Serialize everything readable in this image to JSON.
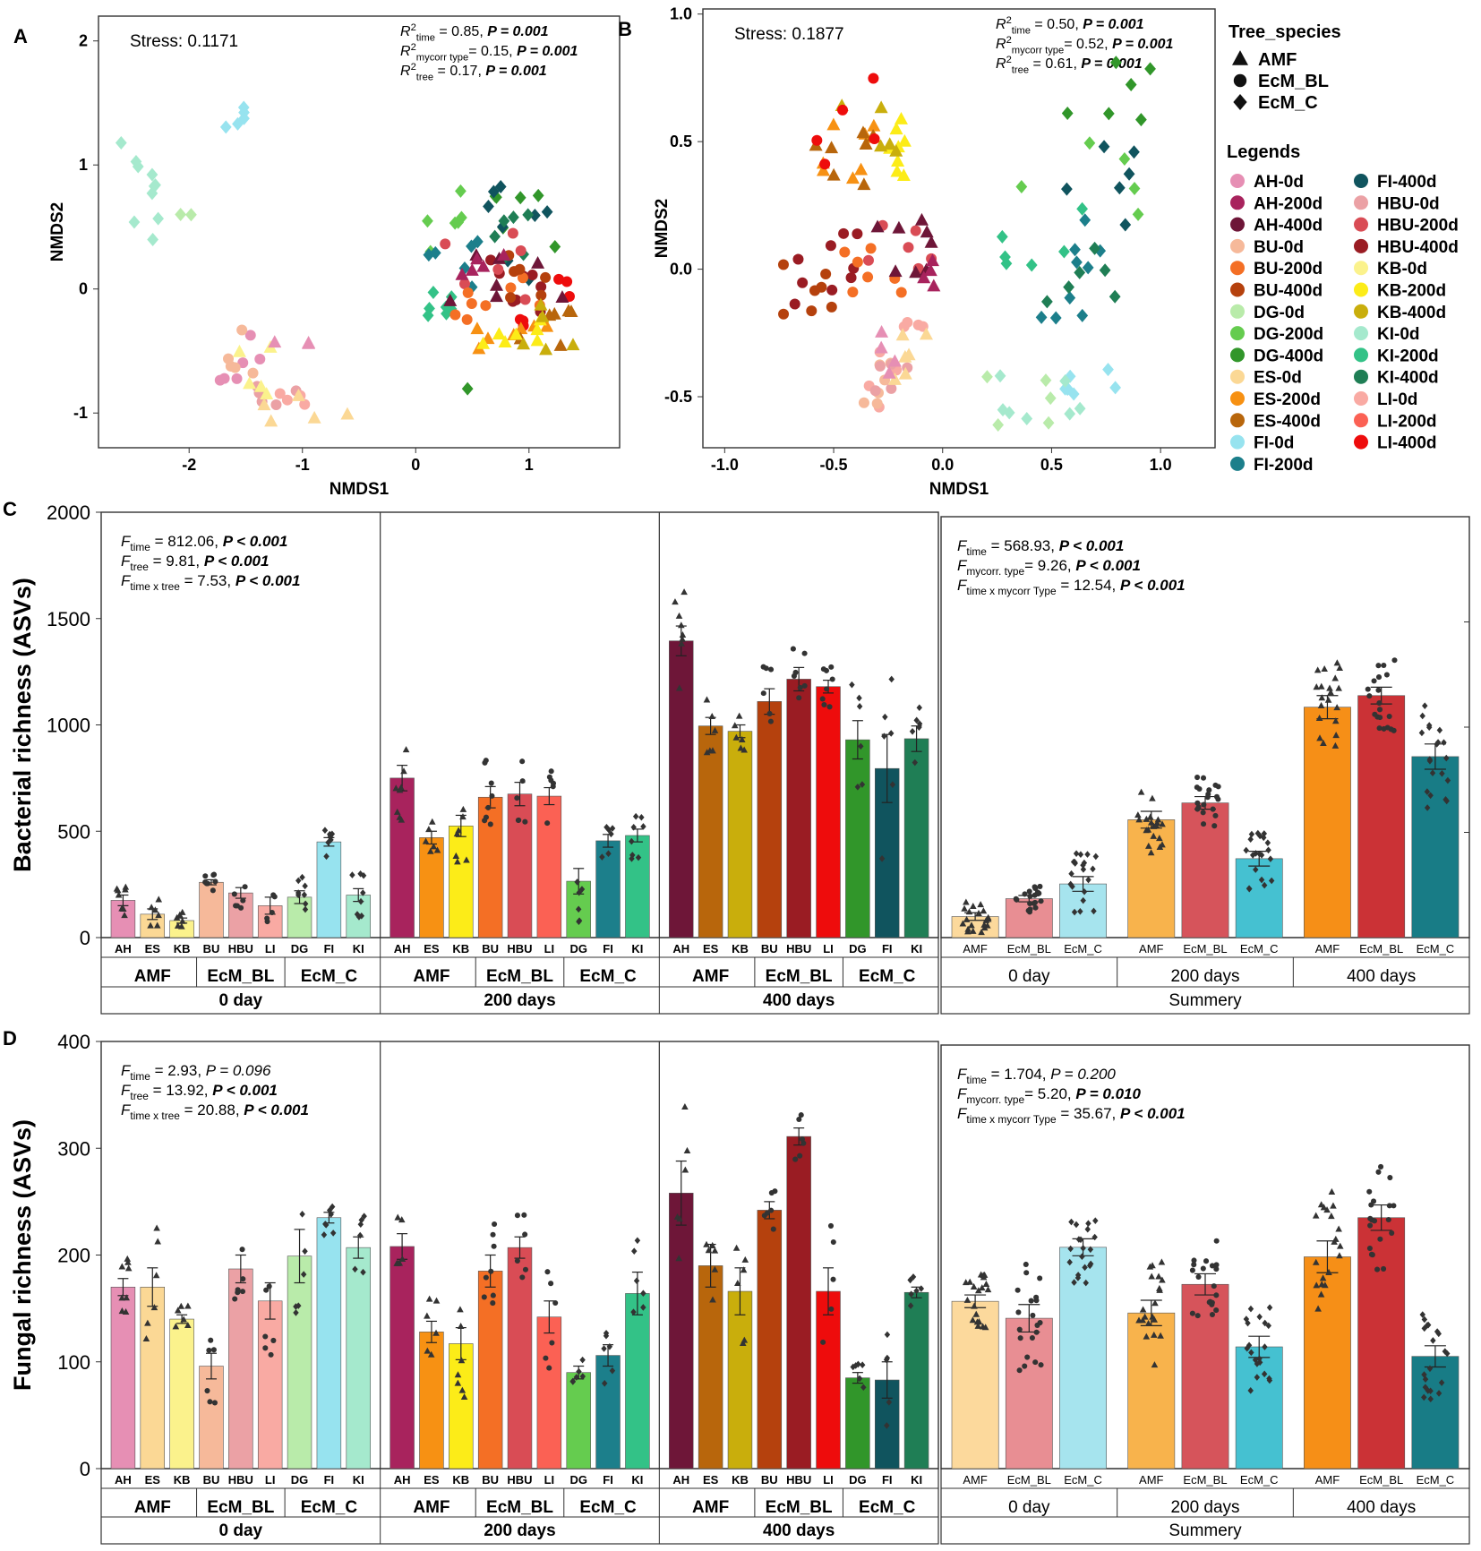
{
  "colors": {
    "AH-0d": "#e68fb4",
    "AH-200d": "#a8235d",
    "AH-400d": "#6e1638",
    "BU-0d": "#f6b99a",
    "BU-200d": "#f46f25",
    "BU-400d": "#b5410d",
    "DG-0d": "#b9ebaa",
    "DG-200d": "#65cc4f",
    "DG-400d": "#31962a",
    "ES-0d": "#fbd895",
    "ES-200d": "#f79113",
    "ES-400d": "#b8660c",
    "FI-0d": "#97e3ef",
    "FI-200d": "#1c7f8b",
    "FI-400d": "#10545e",
    "HBU-0d": "#eba1a5",
    "HBU-200d": "#d94c55",
    "HBU-400d": "#9a1c23",
    "KB-0d": "#fbf28c",
    "KB-200d": "#fcec18",
    "KB-400d": "#c9ae0c",
    "KI-0d": "#a5e9cd",
    "KI-200d": "#33c287",
    "KI-400d": "#1f7e55",
    "LI-0d": "#f9aaa3",
    "LI-200d": "#fb6154",
    "LI-400d": "#ee0c0c",
    "AMF-0d": "#fcd99c",
    "EcM_BL-0d": "#e88e93",
    "EcM_C-0d": "#a6e4ee",
    "AMF-200d": "#f8b34c",
    "EcM_BL-200d": "#d6545b",
    "EcM_C-200d": "#45c1d1",
    "AMF-400d": "#f68f17",
    "EcM_BL-400d": "#cb3236",
    "EcM_C-400d": "#187c86"
  },
  "panels": {
    "A": "A",
    "B": "B",
    "C": "C",
    "D": "D"
  },
  "nmds": {
    "A": {
      "stress": "Stress: 0.1171",
      "stats": [
        {
          "main": "R",
          "sup": "2",
          "sub": "time",
          "rest": " = 0.85, ",
          "p": "P = 0.001"
        },
        {
          "main": "R",
          "sup": "2",
          "sub": "mycorr type",
          "rest": "= 0.15, ",
          "p": "P = 0.001"
        },
        {
          "main": "R",
          "sup": "2",
          "sub": "tree",
          "rest": " = 0.17, ",
          "p": "P = 0.001"
        }
      ],
      "xlabel": "NMDS1",
      "ylabel": "NMDS2",
      "xlim": [
        -2.8,
        1.8
      ],
      "ylim": [
        -1.28,
        2.2
      ],
      "xticks": [
        -2,
        -1,
        0,
        1
      ],
      "yticks": [
        -1,
        0,
        1,
        2
      ]
    },
    "B": {
      "stress": "Stress: 0.1877",
      "stats": [
        {
          "main": "R",
          "sup": "2",
          "sub": "time",
          "rest": " = 0.50, ",
          "p": "P = 0.001"
        },
        {
          "main": "R",
          "sup": "2",
          "sub": "mycorr type",
          "rest": "= 0.52, ",
          "p": "P = 0.001"
        },
        {
          "main": "R",
          "sup": "2",
          "sub": "tree",
          "rest": " = 0.61, ",
          "p": "P = 0.001"
        }
      ],
      "xlabel": "NMDS1",
      "ylabel": "NMDS2",
      "xlim": [
        -1.1,
        1.25
      ],
      "ylim": [
        -0.7,
        1.02
      ],
      "xticks": [
        -1.0,
        -0.5,
        0.0,
        0.5,
        1.0
      ],
      "yticks": [
        -0.5,
        0.0,
        0.5,
        1.0
      ],
      "xtick_labels": [
        "-1.0",
        "-0.5",
        "0.0",
        "0.5",
        "1.0"
      ],
      "ytick_labels": [
        "-0.5",
        "0.0",
        "0.5",
        "1.0"
      ]
    }
  },
  "legend": {
    "shape_title": "Tree_species",
    "shapes": [
      {
        "label": "AMF",
        "shape": "triangle"
      },
      {
        "label": "EcM_BL",
        "shape": "circle"
      },
      {
        "label": "EcM_C",
        "shape": "diamond"
      }
    ],
    "groups_title": "Legends",
    "col1": [
      "AH-0d",
      "AH-200d",
      "AH-400d",
      "BU-0d",
      "BU-200d",
      "BU-400d",
      "DG-0d",
      "DG-200d",
      "DG-400d",
      "ES-0d",
      "ES-200d",
      "ES-400d",
      "FI-0d",
      "FI-200d"
    ],
    "col2": [
      "FI-400d",
      "HBU-0d",
      "HBU-200d",
      "HBU-400d",
      "KB-0d",
      "KB-200d",
      "KB-400d",
      "KI-0d",
      "KI-200d",
      "KI-400d",
      "LI-0d",
      "LI-200d",
      "LI-400d"
    ]
  },
  "chart_data": [
    {
      "type": "bar",
      "id": "C-left",
      "ylabel": "Bacterial richness (ASVs)",
      "ylim": [
        0,
        2000
      ],
      "yticks": [
        0,
        500,
        1000,
        1500,
        2000
      ],
      "stats": [
        {
          "main": "F",
          "sub": "time",
          "rest": " = 812.06, ",
          "p": "P < 0.001"
        },
        {
          "main": "F",
          "sub": "tree",
          "rest": " = 9.81, ",
          "p": "P < 0.001"
        },
        {
          "main": "F",
          "sub": "time x tree",
          "rest": " = 7.53, ",
          "p": "P < 0.001"
        }
      ],
      "groups": [
        "AMF",
        "EcM_BL",
        "EcM_C"
      ],
      "times": [
        "0 day",
        "200 days",
        "400 days"
      ],
      "trees": [
        "AH",
        "ES",
        "KB",
        "BU",
        "HBU",
        "LI",
        "DG",
        "FI",
        "KI"
      ],
      "series": [
        {
          "name": "0 day",
          "values": [
            175,
            110,
            80,
            260,
            210,
            150,
            190,
            450,
            200
          ],
          "se": [
            25,
            25,
            12,
            12,
            25,
            40,
            30,
            20,
            30
          ],
          "n": [
            8,
            6,
            6,
            8,
            6,
            5,
            8,
            7,
            8
          ]
        },
        {
          "name": "200 days",
          "values": [
            750,
            470,
            525,
            660,
            675,
            665,
            265,
            455,
            480
          ],
          "se": [
            60,
            30,
            50,
            50,
            55,
            40,
            60,
            30,
            30
          ],
          "n": [
            8,
            6,
            7,
            8,
            6,
            6,
            6,
            6,
            8
          ]
        },
        {
          "name": "400 days",
          "values": [
            1395,
            995,
            970,
            1110,
            1215,
            1180,
            930,
            795,
            935
          ],
          "se": [
            70,
            40,
            30,
            60,
            55,
            30,
            90,
            160,
            60
          ],
          "n": [
            8,
            6,
            6,
            6,
            7,
            8,
            6,
            6,
            6
          ]
        }
      ]
    },
    {
      "type": "bar",
      "id": "C-right",
      "ylim": [
        0,
        2000
      ],
      "stats": [
        {
          "main": "F",
          "sub": "time",
          "rest": " = 568.93, ",
          "p": "P < 0.001"
        },
        {
          "main": "F",
          "sub": "mycorr. type",
          "rest": "= 9.26, ",
          "p": "P < 0.001"
        },
        {
          "main": "F",
          "sub": "time x mycorr Type",
          "rest": " = 12.54, ",
          "p": "P < 0.001"
        }
      ],
      "categories": [
        "AMF",
        "EcM_BL",
        "EcM_C"
      ],
      "times": [
        "0 day",
        "200 days",
        "400 days"
      ],
      "summary_label": "Summery",
      "series": [
        {
          "name": "0 day",
          "values": [
            100,
            185,
            255
          ],
          "se": [
            18,
            15,
            35
          ]
        },
        {
          "name": "200 days",
          "values": [
            560,
            640,
            375
          ],
          "se": [
            40,
            30,
            35
          ]
        },
        {
          "name": "400 days",
          "values": [
            1095,
            1150,
            860
          ],
          "se": [
            55,
            40,
            60
          ]
        }
      ]
    },
    {
      "type": "bar",
      "id": "D-left",
      "ylabel": "Fungal richness (ASVs)",
      "ylim": [
        0,
        400
      ],
      "yticks": [
        0,
        100,
        200,
        300,
        400
      ],
      "stats": [
        {
          "main": "F",
          "sub": "time",
          "rest": " = 2.93, ",
          "p": "P = 0.096",
          "pbold": false
        },
        {
          "main": "F",
          "sub": "tree",
          "rest": " = 13.92, ",
          "p": "P < 0.001"
        },
        {
          "main": "F",
          "sub": "time x tree",
          "rest": " = 20.88, ",
          "p": "P < 0.001"
        }
      ],
      "groups": [
        "AMF",
        "EcM_BL",
        "EcM_C"
      ],
      "times": [
        "0 day",
        "200 days",
        "400 days"
      ],
      "trees": [
        "AH",
        "ES",
        "KB",
        "BU",
        "HBU",
        "LI",
        "DG",
        "FI",
        "KI"
      ],
      "series": [
        {
          "name": "0 day",
          "values": [
            170,
            170,
            140,
            96,
            187,
            157,
            199,
            235,
            207
          ],
          "se": [
            8,
            18,
            4,
            12,
            13,
            17,
            25,
            5,
            10
          ],
          "n": [
            8,
            6,
            6,
            6,
            6,
            6,
            6,
            7,
            6
          ]
        },
        {
          "name": "200 days",
          "values": [
            208,
            128,
            117,
            185,
            207,
            142,
            90,
            106,
            164
          ],
          "se": [
            12,
            10,
            15,
            15,
            10,
            15,
            6,
            10,
            20
          ],
          "n": [
            6,
            6,
            7,
            8,
            6,
            6,
            6,
            6,
            6
          ]
        },
        {
          "name": "400 days",
          "values": [
            258,
            190,
            166,
            242,
            311,
            166,
            85,
            83,
            165
          ],
          "se": [
            30,
            20,
            22,
            8,
            8,
            22,
            5,
            17,
            5
          ],
          "n": [
            6,
            6,
            6,
            6,
            6,
            5,
            6,
            5,
            6
          ]
        }
      ]
    },
    {
      "type": "bar",
      "id": "D-right",
      "ylim": [
        0,
        400
      ],
      "stats": [
        {
          "main": "F",
          "sub": "time",
          "rest": " = 1.704, ",
          "p": "P = 0.200",
          "pbold": false
        },
        {
          "main": "F",
          "sub": "mycorr. type",
          "rest": "= 5.20, ",
          "p": "P = 0.010"
        },
        {
          "main": "F",
          "sub": "time x mycorr Type",
          "rest": " = 35.67, ",
          "p": "P < 0.001"
        }
      ],
      "categories": [
        "AMF",
        "EcM_BL",
        "EcM_C"
      ],
      "times": [
        "0 day",
        "200 days",
        "400 days"
      ],
      "summary_label": "Summery",
      "series": [
        {
          "name": "0 day",
          "values": [
            158,
            142,
            209
          ],
          "se": [
            6,
            13,
            8
          ]
        },
        {
          "name": "200 days",
          "values": [
            147,
            174,
            115
          ],
          "se": [
            12,
            10,
            10
          ]
        },
        {
          "name": "400 days",
          "values": [
            200,
            237,
            106
          ],
          "se": [
            15,
            12,
            10
          ]
        }
      ]
    }
  ]
}
